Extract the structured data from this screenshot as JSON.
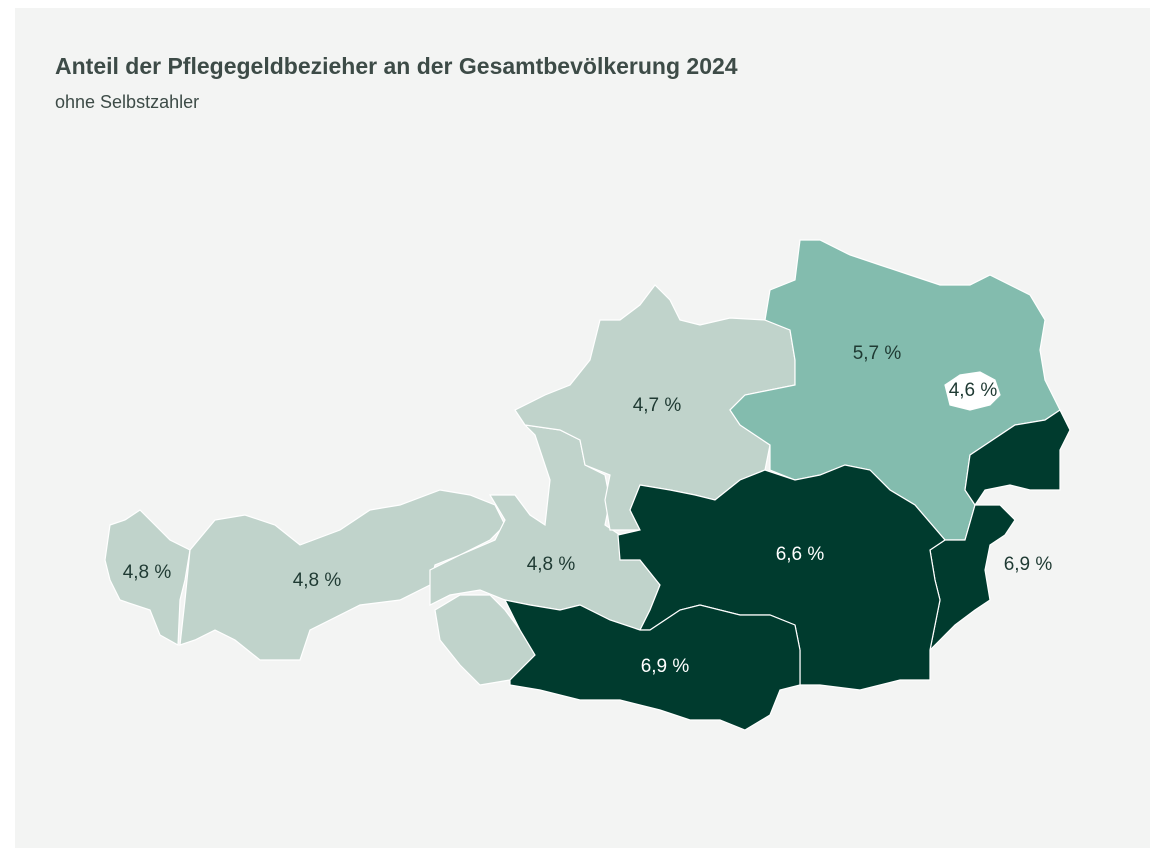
{
  "chart_data": {
    "type": "choropleth",
    "title": "Anteil der Pflegegeldbezieher an der Gesamtbevölkerung 2024",
    "subtitle": "ohne Selbstzahler",
    "values": [
      4.8,
      4.8,
      4.8,
      4.7,
      5.7,
      4.6,
      6.9,
      6.6,
      6.9
    ],
    "value_labels": [
      "4,8 %",
      "4,8 %",
      "4,8 %",
      "4,7 %",
      "5,7 %",
      "4,6 %",
      "6,9 %",
      "6,6 %",
      "6,9 %"
    ],
    "colors": [
      "#c0d3cb",
      "#c0d3cb",
      "#c0d3cb",
      "#c0d3cb",
      "#83bcae",
      "#ffffff",
      "#003b2e",
      "#003b2e",
      "#003b2e"
    ]
  }
}
